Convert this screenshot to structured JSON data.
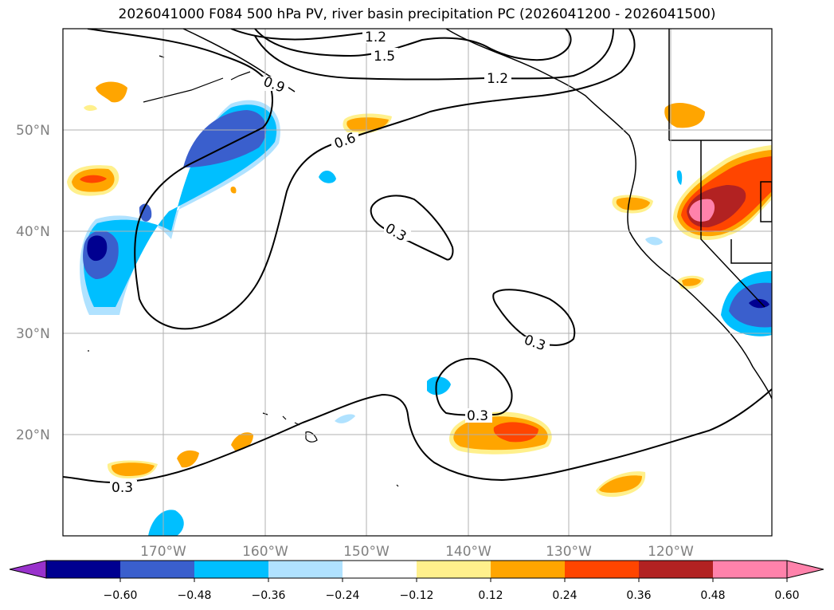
{
  "title": "2026041000 F084 500 hPa PV, river basin precipitation PC (2026041200 - 2026041500)",
  "lat_labels": [
    "50°N",
    "40°N",
    "30°N",
    "20°N"
  ],
  "lon_labels": [
    "170°W",
    "160°W",
    "150°W",
    "140°W",
    "130°W",
    "120°W"
  ],
  "contour_labels": [
    "1.2",
    "1.5",
    "1.2",
    "0.9",
    "0.6",
    "0.3",
    "0.3",
    "0.3",
    "0.3"
  ],
  "colorbar": {
    "ticks": [
      "−0.60",
      "−0.48",
      "−0.36",
      "−0.24",
      "−0.12",
      "0.12",
      "0.24",
      "0.36",
      "0.48",
      "0.60"
    ],
    "colors": [
      "#9932cc",
      "#000090",
      "#3a5fcd",
      "#00bfff",
      "#b0e2ff",
      "#ffffff",
      "#fff08c",
      "#ffa500",
      "#ff4500",
      "#b22222",
      "#ff82ab",
      "#ff82ab"
    ]
  },
  "colors": {
    "neg_extreme": "#000090",
    "neg_strong": "#3a5fcd",
    "neg_mid": "#00bfff",
    "neg_light": "#b0e2ff",
    "pos_light": "#fff08c",
    "pos_mid": "#ffa500",
    "pos_strong": "#ff4500",
    "pos_vstrong": "#b22222",
    "pos_extreme": "#ff82ab"
  }
}
